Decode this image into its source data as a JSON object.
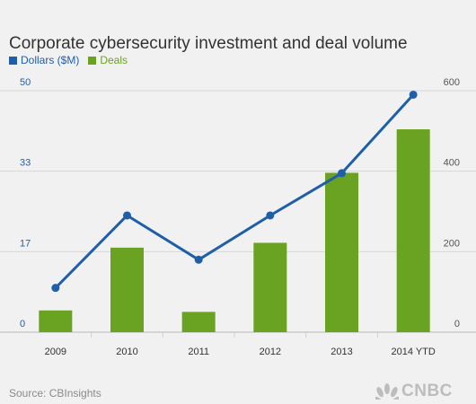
{
  "chart_data": {
    "type": "bar",
    "title": "Corporate cybersecurity investment and deal volume",
    "categories": [
      "2009",
      "2010",
      "2011",
      "2012",
      "2013",
      "2014 YTD"
    ],
    "series": [
      {
        "name": "Dollars ($M)",
        "type": "line",
        "axis": "right",
        "color": "#1f5fa8",
        "values": [
          110,
          290,
          180,
          290,
          395,
          590
        ]
      },
      {
        "name": "Deals",
        "type": "bar",
        "axis": "left",
        "color": "#6aa221",
        "values": [
          4.5,
          17.5,
          4.2,
          18.5,
          33,
          42
        ]
      }
    ],
    "y_left": {
      "ylim": [
        0,
        50
      ],
      "ticks": [
        "0",
        "17",
        "33",
        "50"
      ],
      "color": "#1f5fa8"
    },
    "y_right": {
      "ylim": [
        0,
        600
      ],
      "ticks": [
        "0",
        "200",
        "400",
        "600"
      ],
      "color": "#555555"
    },
    "grid": true,
    "legend_position": "top-left"
  },
  "source": "Source: CBInsights",
  "logo": {
    "text": "CNBC",
    "icon": "peacock-icon"
  }
}
